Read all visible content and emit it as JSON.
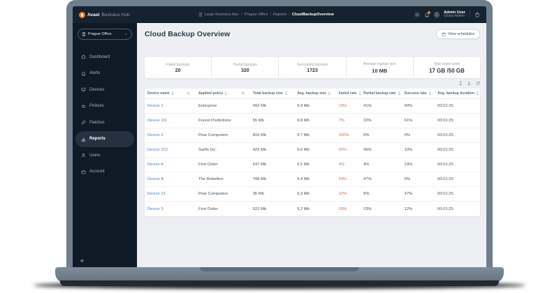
{
  "colors": {
    "accent_orange": "#f47b20",
    "link_blue": "#4a7fd4",
    "failed_red": "#dd6850",
    "topbar_bg": "#15222f",
    "sidebar_bg": "#0e1a25",
    "main_bg": "#edeff2"
  },
  "topbar": {
    "brand_bold": "Avast",
    "brand_rest": "Business Hub",
    "breadcrumb": [
      "Large Business Ass.",
      "Prague Office",
      "Reports",
      "CloudBackupOverview"
    ],
    "breadcrumb_separator": "/",
    "user": {
      "name": "Admin User",
      "role": "Global Admin"
    }
  },
  "sidebar": {
    "org_selector": "Prague Office",
    "collapse_glyph": "«",
    "items": [
      {
        "label": "Dashboard"
      },
      {
        "label": "Alerts"
      },
      {
        "label": "Devices"
      },
      {
        "label": "Policies"
      },
      {
        "label": "Patches"
      },
      {
        "label": "Reports",
        "active": true
      },
      {
        "label": "Users"
      },
      {
        "label": "Account"
      }
    ]
  },
  "main": {
    "title": "Cloud Backup Overview",
    "view_schedules_label": "View schedules",
    "stats": [
      {
        "label": "Failed backups",
        "value": "20"
      },
      {
        "label": "Partial backups",
        "value": "320"
      },
      {
        "label": "Successful backups",
        "value": "1723"
      },
      {
        "label": "Average backup size",
        "value": "10 MB"
      },
      {
        "label": "Total space used",
        "value": "17 GB /50 GB"
      }
    ],
    "table": {
      "columns": [
        "Device name",
        "Applied policy",
        "Total backup size",
        "Avg. backup size",
        "Failed rate",
        "Partial backup rate",
        "Success rate",
        "Avg. backup duration"
      ],
      "rows": [
        {
          "device": "Device 1",
          "policy": "Enterprise",
          "total": "492 Mb",
          "avg": "9.9 Mb",
          "failed": "19%",
          "partial": "41%",
          "success": "40%",
          "duration": "00:01:25"
        },
        {
          "device": "Device 111",
          "policy": "Forest Predictions",
          "total": "55 Mb",
          "avg": "9.8 Mb",
          "failed": "7%",
          "partial": "32%",
          "success": "61%",
          "duration": "00:01:25"
        },
        {
          "device": "Device 2",
          "policy": "Pear Computers",
          "total": "816 Mb",
          "avg": "9.7 Mb",
          "failed": "100%",
          "partial": "0%",
          "success": "0%",
          "duration": "00:01:25"
        },
        {
          "device": "Device 222",
          "policy": "Sarfin Inc.",
          "total": "429 Mb",
          "avg": "9.6 Mb",
          "failed": "60%",
          "partial": "45%",
          "success": "10%",
          "duration": "00:01:25"
        },
        {
          "device": "Device A",
          "policy": "First Order",
          "total": "647 Mb",
          "avg": "9.5 Mb",
          "failed": "4%",
          "partial": "4%",
          "success": "23%",
          "duration": "00:01:25"
        },
        {
          "device": "Device B",
          "policy": "The Rebellion",
          "total": "798 Mb",
          "avg": "9.4 Mb",
          "failed": "53%",
          "partial": "47%",
          "success": "0%",
          "duration": "00:01:25"
        },
        {
          "device": "Device 12",
          "policy": "Pear Computers",
          "total": "36 Mb",
          "avg": "9.3 Mb",
          "failed": "12%",
          "partial": "8%",
          "success": "47%",
          "duration": "00:01:25"
        },
        {
          "device": "Device 3",
          "policy": "First Order",
          "total": "522 Mb",
          "avg": "9.2 Mb",
          "failed": "20%",
          "partial": "23%",
          "success": "12%",
          "duration": "00:01:25"
        }
      ]
    }
  }
}
